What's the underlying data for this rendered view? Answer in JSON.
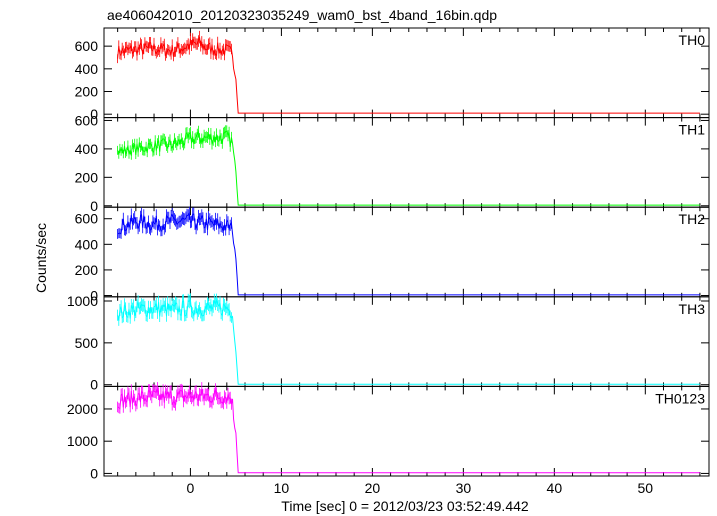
{
  "title": "ae406042010_20120323035249_wam0_bst_4band_16bin.qdp",
  "xlabel": "Time [sec] 0 = 2012/03/23 03:52:49.442",
  "ylabel": "Counts/sec",
  "chart_data": {
    "type": "line",
    "title": "ae406042010_20120323035249_wam0_bst_4band_16bin.qdp",
    "xlabel": "Time [sec] 0 = 2012/03/23 03:52:49.442",
    "ylabel": "Counts/sec",
    "xlim": [
      -9.5,
      57
    ],
    "x_ticks": [
      0,
      10,
      20,
      30,
      40,
      50
    ],
    "grid": false,
    "panels": [
      {
        "name": "TH0",
        "color": "#ff0000",
        "ylim": [
          -30,
          760
        ],
        "y_ticks": [
          0,
          200,
          400,
          600
        ],
        "profile": [
          [
            -8,
            550
          ],
          [
            -6,
            570
          ],
          [
            -4,
            580
          ],
          [
            -2,
            560
          ],
          [
            0,
            610
          ],
          [
            1,
            620
          ],
          [
            2,
            580
          ],
          [
            4,
            560
          ],
          [
            4.6,
            540
          ],
          [
            4.8,
            380
          ],
          [
            5.0,
            320
          ],
          [
            5.1,
            200
          ],
          [
            5.2,
            10
          ],
          [
            56,
            10
          ]
        ]
      },
      {
        "name": "TH1",
        "color": "#00ff00",
        "ylim": [
          -10,
          620
        ],
        "y_ticks": [
          0,
          200,
          400,
          600
        ],
        "profile": [
          [
            -8,
            380
          ],
          [
            -6,
            400
          ],
          [
            -4,
            420
          ],
          [
            -2,
            430
          ],
          [
            0,
            470
          ],
          [
            2,
            480
          ],
          [
            4,
            480
          ],
          [
            4.6,
            450
          ],
          [
            4.8,
            340
          ],
          [
            5.0,
            250
          ],
          [
            5.1,
            150
          ],
          [
            5.2,
            5
          ],
          [
            56,
            5
          ]
        ]
      },
      {
        "name": "TH2",
        "color": "#0000ff",
        "ylim": [
          -10,
          690
        ],
        "y_ticks": [
          0,
          200,
          400,
          600
        ],
        "profile": [
          [
            -8,
            530
          ],
          [
            -6,
            580
          ],
          [
            -4,
            560
          ],
          [
            -2,
            575
          ],
          [
            0,
            580
          ],
          [
            2,
            560
          ],
          [
            4,
            540
          ],
          [
            4.6,
            520
          ],
          [
            4.8,
            380
          ],
          [
            5.0,
            300
          ],
          [
            5.1,
            200
          ],
          [
            5.2,
            5
          ],
          [
            56,
            5
          ]
        ]
      },
      {
        "name": "TH3",
        "color": "#00ffff",
        "ylim": [
          -20,
          1050
        ],
        "y_ticks": [
          0,
          500,
          1000
        ],
        "profile": [
          [
            -8,
            850
          ],
          [
            -6,
            900
          ],
          [
            -4,
            910
          ],
          [
            -2,
            890
          ],
          [
            0,
            920
          ],
          [
            2,
            910
          ],
          [
            4,
            920
          ],
          [
            4.6,
            880
          ],
          [
            4.8,
            600
          ],
          [
            5.0,
            400
          ],
          [
            5.1,
            250
          ],
          [
            5.2,
            5
          ],
          [
            56,
            5
          ]
        ]
      },
      {
        "name": "TH0123",
        "color": "#ff00ff",
        "ylim": [
          -80,
          2700
        ],
        "y_ticks": [
          0,
          1000,
          2000
        ],
        "profile": [
          [
            -8,
            2250
          ],
          [
            -6,
            2330
          ],
          [
            -4,
            2380
          ],
          [
            -2,
            2360
          ],
          [
            0,
            2400
          ],
          [
            2,
            2390
          ],
          [
            4,
            2400
          ],
          [
            4.6,
            2350
          ],
          [
            4.8,
            1500
          ],
          [
            5.0,
            1300
          ],
          [
            5.1,
            800
          ],
          [
            5.2,
            20
          ],
          [
            56,
            20
          ]
        ]
      }
    ]
  }
}
